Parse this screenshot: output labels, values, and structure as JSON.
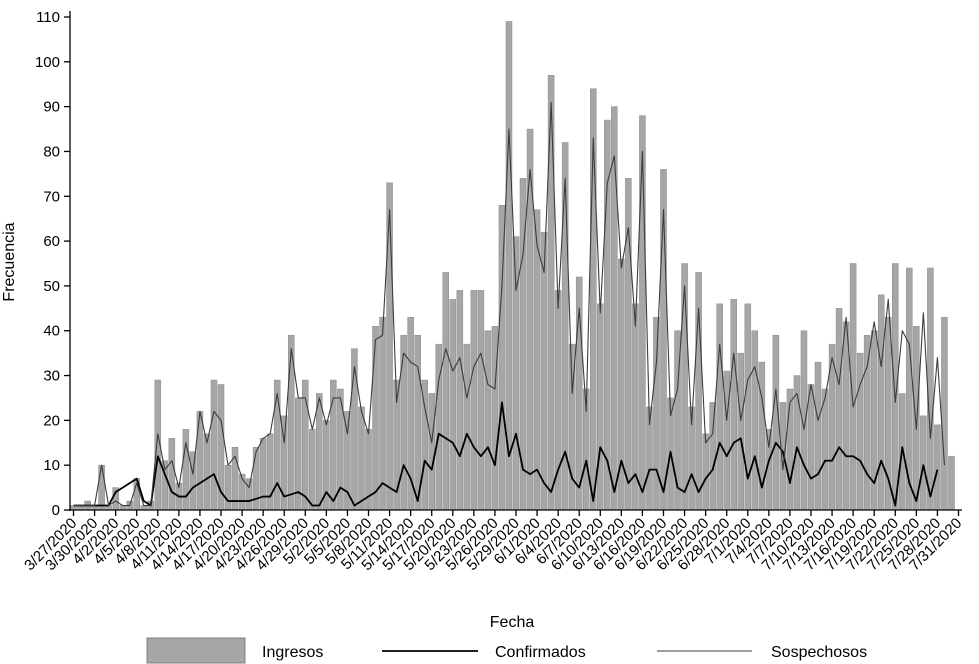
{
  "chart_data": {
    "type": "bar",
    "title": "",
    "xlabel": "Fecha",
    "ylabel": "Frecuencia",
    "ylim": [
      0,
      110
    ],
    "yticks": [
      0,
      10,
      20,
      30,
      40,
      50,
      60,
      70,
      80,
      90,
      100,
      110
    ],
    "grid": false,
    "legend_position": "bottom",
    "x_tick_labels": [
      "3/27/2020",
      "3/30/2020",
      "4/2/2020",
      "4/5/2020",
      "4/8/2020",
      "4/11/2020",
      "4/14/2020",
      "4/17/2020",
      "4/20/2020",
      "4/23/2020",
      "4/26/2020",
      "4/29/2020",
      "5/2/2020",
      "5/5/2020",
      "5/8/2020",
      "5/11/2020",
      "5/14/2020",
      "5/17/2020",
      "5/20/2020",
      "5/23/2020",
      "5/26/2020",
      "5/29/2020",
      "6/1/2020",
      "6/4/2020",
      "6/7/2020",
      "6/10/2020",
      "6/13/2020",
      "6/16/2020",
      "6/19/2020",
      "6/22/2020",
      "6/25/2020",
      "6/28/2020",
      "7/1/2020",
      "7/4/2020",
      "7/7/2020",
      "7/10/2020",
      "7/13/2020",
      "7/16/2020",
      "7/19/2020",
      "7/22/2020",
      "7/25/2020",
      "7/28/2020",
      "7/31/2020"
    ],
    "start_date": "2020-03-27",
    "end_date": "2020-07-31",
    "series": [
      {
        "name": "Ingresos",
        "kind": "bar",
        "color": "#a6a6a6",
        "values": [
          1,
          1,
          2,
          1,
          10,
          1,
          5,
          1,
          2,
          7,
          1,
          2,
          29,
          11,
          16,
          6,
          18,
          13,
          22,
          17,
          29,
          28,
          10,
          14,
          8,
          7,
          14,
          16,
          17,
          29,
          21,
          39,
          25,
          29,
          18,
          26,
          20,
          29,
          27,
          22,
          36,
          23,
          18,
          41,
          43,
          73,
          29,
          39,
          43,
          39,
          29,
          26,
          37,
          53,
          47,
          49,
          37,
          49,
          49,
          40,
          41,
          68,
          109,
          61,
          74,
          85,
          67,
          62,
          97,
          49,
          82,
          37,
          52,
          27,
          94,
          46,
          87,
          90,
          56,
          74,
          46,
          88,
          23,
          43,
          76,
          25,
          40,
          55,
          23,
          53,
          17,
          24,
          46,
          31,
          47,
          35,
          46,
          40,
          33,
          18,
          39,
          24,
          27,
          30,
          40,
          28,
          33,
          27,
          37,
          45,
          42,
          55,
          35,
          39,
          40,
          48,
          43,
          55,
          26,
          54,
          41,
          21,
          54,
          19,
          43,
          12
        ]
      },
      {
        "name": "Confirmados",
        "kind": "line",
        "color": "#000000",
        "values": [
          1,
          1,
          1,
          1,
          1,
          1,
          4,
          5,
          6,
          7,
          2,
          1,
          12,
          8,
          4,
          3,
          3,
          5,
          6,
          7,
          8,
          4,
          2,
          2,
          2,
          2,
          2.5,
          3,
          3,
          6,
          3,
          3.5,
          4,
          3,
          1,
          1,
          4,
          2,
          5,
          4,
          1,
          2,
          3,
          4,
          6,
          5,
          4,
          10,
          7,
          2,
          11,
          9,
          17,
          16,
          15,
          12,
          17,
          14,
          12,
          14,
          10,
          24,
          12,
          17,
          9,
          8,
          9,
          6,
          4,
          9,
          13,
          7,
          5,
          11,
          2,
          14,
          11,
          4,
          11,
          6,
          8,
          4,
          9,
          9,
          4,
          13,
          5,
          4,
          8,
          4,
          7,
          9,
          15,
          12,
          15,
          16,
          7,
          12,
          5,
          11,
          15,
          13,
          6,
          14,
          10,
          7,
          8,
          11,
          11,
          14,
          12,
          12,
          11,
          8,
          6,
          11,
          7,
          1,
          14,
          6,
          2,
          10,
          3,
          9
        ]
      },
      {
        "name": "Sospechosos",
        "kind": "line",
        "color": "#3c3c3c",
        "values": [
          1,
          1,
          1,
          1,
          10,
          1,
          2,
          1,
          1,
          6,
          1,
          1,
          17,
          9,
          11,
          5,
          15,
          8,
          22,
          15,
          22,
          20,
          10,
          12,
          7,
          5,
          13,
          16,
          17,
          26,
          15,
          36,
          25,
          25,
          18,
          25,
          19,
          25,
          25,
          17,
          32,
          22,
          17,
          38,
          39,
          67,
          24,
          35,
          33,
          32,
          23,
          15,
          29,
          36,
          31,
          34,
          25,
          32,
          35,
          28,
          27,
          50,
          85,
          49,
          57,
          76,
          59,
          53,
          91,
          45,
          74,
          26,
          45,
          22,
          83,
          44,
          73,
          79,
          54,
          63,
          41,
          80,
          19,
          33,
          67,
          21,
          27,
          50,
          19,
          45,
          15,
          17,
          37,
          20,
          35,
          20,
          29,
          32,
          25,
          14,
          27,
          9,
          24,
          26,
          18,
          28,
          20,
          25,
          34,
          28,
          43,
          23,
          28,
          32,
          42,
          32,
          47,
          24,
          40,
          37,
          18,
          44,
          16,
          34,
          10
        ]
      }
    ]
  }
}
